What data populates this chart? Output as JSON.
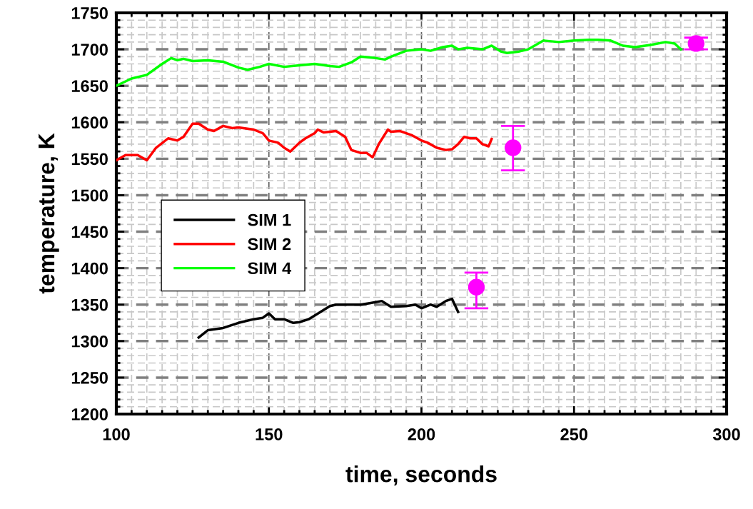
{
  "chart_data": {
    "type": "line",
    "xlabel": "time, seconds",
    "ylabel": "temperature, K",
    "xlim": [
      100,
      300
    ],
    "xticks": [
      100,
      150,
      200,
      250,
      300
    ],
    "ylim": [
      1200,
      1750
    ],
    "yticks": [
      1200,
      1250,
      1300,
      1350,
      1400,
      1450,
      1500,
      1550,
      1600,
      1650,
      1700,
      1750
    ],
    "grid": true,
    "legend": "center left",
    "line_style": "solid",
    "marker": "none",
    "series": [
      {
        "name": "SIM 1",
        "color": "#000000",
        "x": [
          127,
          130,
          135,
          140,
          145,
          148,
          150,
          152,
          155,
          158,
          160,
          163,
          165,
          170,
          172,
          175,
          178,
          180,
          183,
          187,
          190,
          195,
          198,
          200,
          203,
          205,
          208,
          210,
          212
        ],
        "values": [
          1305,
          1315,
          1318,
          1325,
          1330,
          1332,
          1338,
          1330,
          1330,
          1325,
          1326,
          1330,
          1335,
          1348,
          1350,
          1350,
          1350,
          1350,
          1352,
          1355,
          1347,
          1348,
          1350,
          1345,
          1350,
          1347,
          1355,
          1358,
          1340
        ]
      },
      {
        "name": "SIM 2",
        "color": "#ff0000",
        "x": [
          100,
          103,
          107,
          110,
          113,
          117,
          120,
          122,
          125,
          127,
          130,
          132,
          135,
          138,
          140,
          145,
          148,
          150,
          153,
          155,
          157,
          160,
          162,
          165,
          166,
          168,
          172,
          175,
          177,
          180,
          182,
          184,
          186,
          189,
          190,
          193,
          197,
          200,
          202,
          205,
          208,
          210,
          212,
          214,
          216,
          218,
          220,
          222,
          223
        ],
        "values": [
          1548,
          1555,
          1555,
          1548,
          1565,
          1578,
          1575,
          1580,
          1598,
          1598,
          1590,
          1588,
          1595,
          1592,
          1593,
          1590,
          1585,
          1575,
          1572,
          1565,
          1560,
          1572,
          1578,
          1585,
          1590,
          1586,
          1588,
          1580,
          1562,
          1558,
          1558,
          1552,
          1570,
          1590,
          1587,
          1588,
          1582,
          1575,
          1572,
          1565,
          1562,
          1563,
          1570,
          1580,
          1578,
          1578,
          1570,
          1567,
          1577
        ]
      },
      {
        "name": "SIM 4",
        "color": "#00ff00",
        "x": [
          100,
          105,
          110,
          115,
          118,
          120,
          122,
          125,
          130,
          135,
          140,
          143,
          147,
          150,
          155,
          160,
          165,
          170,
          173,
          177,
          180,
          185,
          188,
          190,
          195,
          200,
          203,
          207,
          210,
          212,
          215,
          220,
          223,
          226,
          228,
          232,
          235,
          240,
          245,
          250,
          255,
          258,
          262,
          266,
          270,
          275,
          280,
          283,
          285
        ],
        "values": [
          1650,
          1660,
          1665,
          1680,
          1688,
          1685,
          1687,
          1684,
          1685,
          1683,
          1675,
          1672,
          1676,
          1680,
          1676,
          1678,
          1680,
          1677,
          1676,
          1682,
          1690,
          1688,
          1686,
          1690,
          1698,
          1700,
          1698,
          1703,
          1705,
          1700,
          1702,
          1700,
          1705,
          1697,
          1695,
          1697,
          1700,
          1712,
          1710,
          1712,
          1713,
          1713,
          1712,
          1705,
          1703,
          1706,
          1710,
          1708,
          1700
        ]
      },
      {
        "type": "scatter",
        "color": "#ff00ff",
        "marker": "circle",
        "x": [
          218,
          230,
          290
        ],
        "values": [
          1374,
          1565,
          1708
        ],
        "errors": [
          [
            1345,
            1394
          ],
          [
            1534,
            1595
          ],
          [
            1700,
            1716
          ]
        ]
      }
    ]
  }
}
